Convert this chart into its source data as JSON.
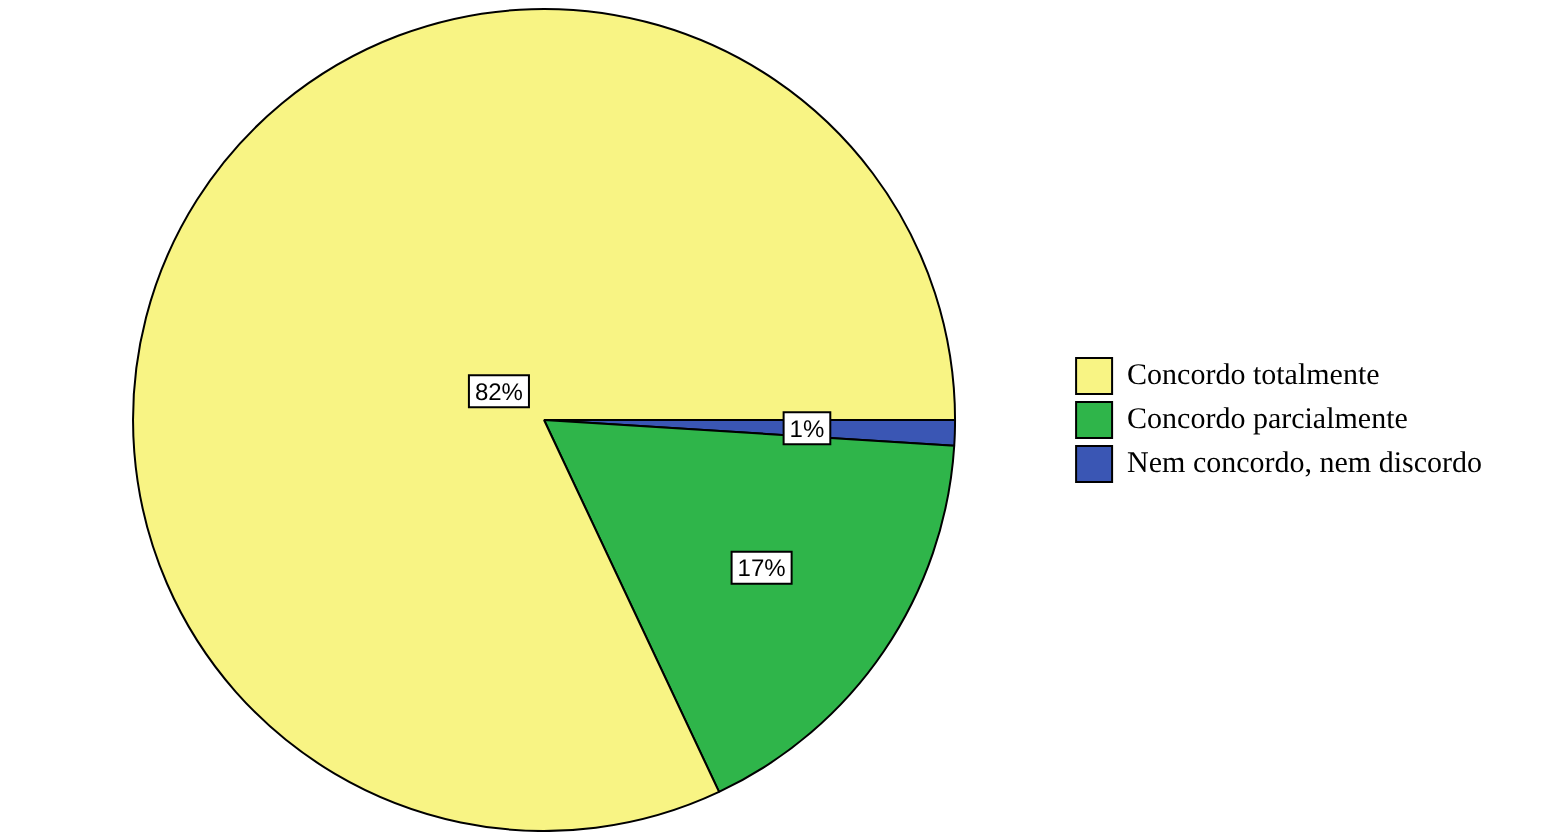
{
  "chart_data": {
    "type": "pie",
    "categories": [
      "Concordo totalmente",
      "Concordo parcialmente",
      "Nem concordo, nem discordo"
    ],
    "values": [
      82,
      17,
      1
    ],
    "colors": [
      "#f8f484",
      "#2fb54a",
      "#3a56b4"
    ],
    "value_labels": [
      "82%",
      "17%",
      "1%"
    ],
    "legend": "right"
  }
}
